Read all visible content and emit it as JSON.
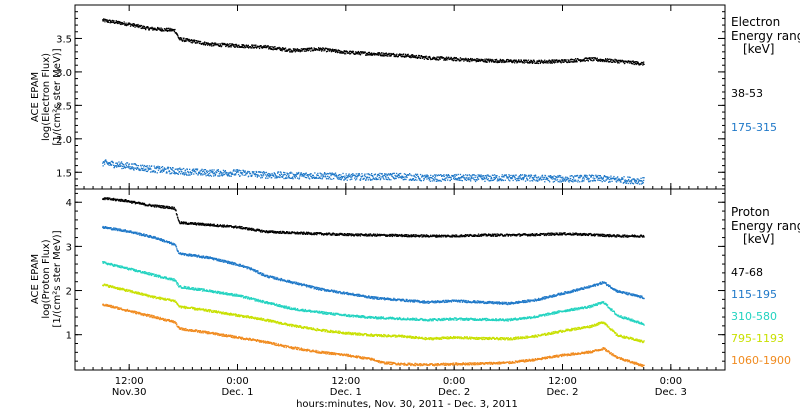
{
  "chart_data": [
    {
      "type": "scatter",
      "title": "",
      "ylabel_lines": [
        "ACE EPAM",
        "log(Electron Flux)",
        "[1/(cm²s ster MeV)]"
      ],
      "ylim": [
        1.25,
        4.0
      ],
      "yticks": [
        "1.5",
        "2.0",
        "2.5",
        "3.0",
        "3.5"
      ],
      "ytick_values": [
        1.5,
        2.0,
        2.5,
        3.0,
        3.5
      ],
      "legend_title": [
        "Electron",
        "Energy ranges",
        "[keV]"
      ],
      "series": [
        {
          "name": "38-53",
          "color": "#000000",
          "points": [
            [
              0,
              3.78
            ],
            [
              6,
              3.72
            ],
            [
              10,
              3.66
            ],
            [
              16,
              3.63
            ],
            [
              17,
              3.5
            ],
            [
              24,
              3.42
            ],
            [
              30,
              3.4
            ],
            [
              36,
              3.38
            ],
            [
              42,
              3.33
            ],
            [
              48,
              3.35
            ],
            [
              54,
              3.3
            ],
            [
              60,
              3.28
            ],
            [
              66,
              3.26
            ],
            [
              72,
              3.22
            ],
            [
              78,
              3.2
            ],
            [
              84,
              3.18
            ],
            [
              90,
              3.17
            ],
            [
              96,
              3.16
            ],
            [
              102,
              3.17
            ],
            [
              108,
              3.2
            ],
            [
              114,
              3.17
            ],
            [
              120,
              3.13
            ]
          ]
        },
        {
          "name": "175-315",
          "color": "#1f78c8",
          "points": [
            [
              0,
              1.65
            ],
            [
              6,
              1.6
            ],
            [
              12,
              1.55
            ],
            [
              18,
              1.52
            ],
            [
              24,
              1.5
            ],
            [
              30,
              1.5
            ],
            [
              36,
              1.47
            ],
            [
              42,
              1.46
            ],
            [
              48,
              1.46
            ],
            [
              54,
              1.44
            ],
            [
              60,
              1.44
            ],
            [
              66,
              1.45
            ],
            [
              72,
              1.42
            ],
            [
              78,
              1.43
            ],
            [
              84,
              1.42
            ],
            [
              90,
              1.43
            ],
            [
              96,
              1.42
            ],
            [
              102,
              1.41
            ],
            [
              108,
              1.42
            ],
            [
              114,
              1.4
            ],
            [
              120,
              1.38
            ]
          ]
        }
      ]
    },
    {
      "type": "scatter",
      "title": "",
      "ylabel_lines": [
        "ACE EPAM",
        "log(Proton Flux)",
        "[1/(cm²s ster MeV)]"
      ],
      "ylim": [
        0.2,
        4.3
      ],
      "yticks": [
        "1",
        "2",
        "3",
        "4"
      ],
      "ytick_values": [
        1,
        2,
        3,
        4
      ],
      "legend_title": [
        "Proton",
        "Energy ranges",
        "[keV]"
      ],
      "series": [
        {
          "name": "47-68",
          "color": "#000000",
          "points": [
            [
              0,
              4.1
            ],
            [
              5,
              4.05
            ],
            [
              10,
              3.95
            ],
            [
              16,
              3.88
            ],
            [
              17,
              3.55
            ],
            [
              24,
              3.5
            ],
            [
              30,
              3.45
            ],
            [
              36,
              3.35
            ],
            [
              42,
              3.32
            ],
            [
              48,
              3.3
            ],
            [
              54,
              3.28
            ],
            [
              60,
              3.27
            ],
            [
              66,
              3.26
            ],
            [
              72,
              3.25
            ],
            [
              78,
              3.25
            ],
            [
              84,
              3.27
            ],
            [
              90,
              3.27
            ],
            [
              96,
              3.28
            ],
            [
              102,
              3.3
            ],
            [
              108,
              3.28
            ],
            [
              114,
              3.25
            ],
            [
              120,
              3.25
            ]
          ]
        },
        {
          "name": "115-195",
          "color": "#1f78c8",
          "points": [
            [
              0,
              3.45
            ],
            [
              6,
              3.35
            ],
            [
              12,
              3.2
            ],
            [
              16,
              3.05
            ],
            [
              17,
              2.85
            ],
            [
              24,
              2.75
            ],
            [
              30,
              2.6
            ],
            [
              33,
              2.5
            ],
            [
              36,
              2.35
            ],
            [
              42,
              2.2
            ],
            [
              48,
              2.05
            ],
            [
              54,
              1.95
            ],
            [
              60,
              1.85
            ],
            [
              66,
              1.8
            ],
            [
              72,
              1.75
            ],
            [
              78,
              1.78
            ],
            [
              84,
              1.75
            ],
            [
              90,
              1.72
            ],
            [
              96,
              1.8
            ],
            [
              102,
              1.95
            ],
            [
              108,
              2.1
            ],
            [
              111,
              2.2
            ],
            [
              114,
              2.0
            ],
            [
              120,
              1.85
            ]
          ]
        },
        {
          "name": "310-580",
          "color": "#22d3c0",
          "points": [
            [
              0,
              2.65
            ],
            [
              6,
              2.5
            ],
            [
              12,
              2.35
            ],
            [
              16,
              2.25
            ],
            [
              17,
              2.1
            ],
            [
              24,
              2.0
            ],
            [
              30,
              1.9
            ],
            [
              36,
              1.75
            ],
            [
              42,
              1.6
            ],
            [
              48,
              1.52
            ],
            [
              54,
              1.45
            ],
            [
              60,
              1.4
            ],
            [
              66,
              1.38
            ],
            [
              72,
              1.35
            ],
            [
              78,
              1.37
            ],
            [
              84,
              1.36
            ],
            [
              90,
              1.35
            ],
            [
              96,
              1.42
            ],
            [
              102,
              1.55
            ],
            [
              108,
              1.65
            ],
            [
              111,
              1.75
            ],
            [
              114,
              1.45
            ],
            [
              120,
              1.25
            ]
          ]
        },
        {
          "name": "795-1193",
          "color": "#c8e000",
          "points": [
            [
              0,
              2.15
            ],
            [
              6,
              2.0
            ],
            [
              12,
              1.85
            ],
            [
              16,
              1.78
            ],
            [
              17,
              1.65
            ],
            [
              24,
              1.55
            ],
            [
              30,
              1.45
            ],
            [
              36,
              1.35
            ],
            [
              42,
              1.22
            ],
            [
              48,
              1.12
            ],
            [
              54,
              1.05
            ],
            [
              60,
              1.0
            ],
            [
              66,
              0.98
            ],
            [
              72,
              0.92
            ],
            [
              78,
              0.95
            ],
            [
              84,
              0.93
            ],
            [
              90,
              0.92
            ],
            [
              96,
              0.98
            ],
            [
              102,
              1.1
            ],
            [
              108,
              1.2
            ],
            [
              111,
              1.3
            ],
            [
              114,
              1.0
            ],
            [
              120,
              0.85
            ]
          ]
        },
        {
          "name": "1060-1900",
          "color": "#f08a1e",
          "points": [
            [
              0,
              1.7
            ],
            [
              6,
              1.55
            ],
            [
              12,
              1.4
            ],
            [
              16,
              1.3
            ],
            [
              17,
              1.15
            ],
            [
              24,
              1.05
            ],
            [
              30,
              0.95
            ],
            [
              36,
              0.85
            ],
            [
              42,
              0.72
            ],
            [
              48,
              0.62
            ],
            [
              54,
              0.55
            ],
            [
              60,
              0.45
            ],
            [
              62,
              0.38
            ],
            [
              66,
              0.35
            ],
            [
              72,
              0.33
            ],
            [
              78,
              0.35
            ],
            [
              84,
              0.36
            ],
            [
              90,
              0.38
            ],
            [
              96,
              0.45
            ],
            [
              102,
              0.55
            ],
            [
              108,
              0.62
            ],
            [
              111,
              0.7
            ],
            [
              114,
              0.5
            ],
            [
              120,
              0.3
            ]
          ]
        }
      ]
    }
  ],
  "x_axis": {
    "range_hours": [
      -6,
      138
    ],
    "ticks": [
      {
        "hour": 6,
        "line1": "12:00",
        "line2": "Nov.30"
      },
      {
        "hour": 30,
        "line1": "0:00",
        "line2": "Dec. 1"
      },
      {
        "hour": 54,
        "line1": "12:00",
        "line2": "Dec. 1"
      },
      {
        "hour": 78,
        "line1": "0:00",
        "line2": "Dec. 2"
      },
      {
        "hour": 102,
        "line1": "12:00",
        "line2": "Dec. 2"
      },
      {
        "hour": 126,
        "line1": "0:00",
        "line2": "Dec. 3"
      }
    ],
    "label": "hours:minutes, Nov. 30, 2011 - Dec. 3, 2011"
  }
}
